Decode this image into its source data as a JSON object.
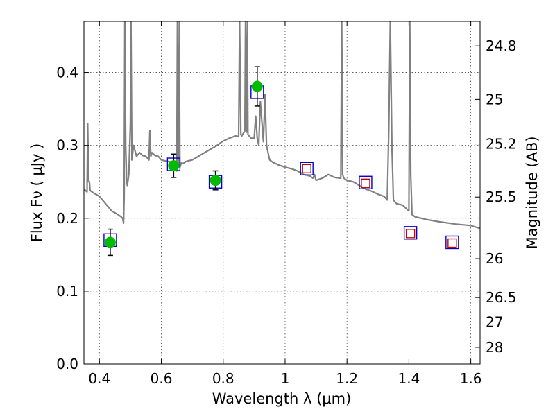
{
  "chart_data": {
    "type": "scatter",
    "title": "",
    "xlabel": "Wavelength  λ (μm)",
    "ylabel": "Flux  Fν  ( μJy )",
    "y2label": "Magnitude (AB)",
    "xlim": [
      0.35,
      1.63
    ],
    "ylim": [
      0.0,
      0.47
    ],
    "grid": true,
    "x_ticks": [
      0.4,
      0.6,
      0.8,
      1.0,
      1.2,
      1.4,
      1.6
    ],
    "x_tick_labels": [
      "0.4",
      "0.6",
      "0.8",
      "1",
      "1.2",
      "1.4",
      "1.6"
    ],
    "y_ticks": [
      0.0,
      0.1,
      0.2,
      0.3,
      0.4
    ],
    "y_tick_labels": [
      "0.0",
      "0.1",
      "0.2",
      "0.3",
      "0.4"
    ],
    "y2_ticks": [
      24.8,
      25.0,
      25.2,
      25.5,
      26.0,
      26.5,
      27.0,
      28.0
    ],
    "y2_tick_labels": [
      "24.8",
      "25",
      "25.2",
      "25.5",
      "26",
      "26.5",
      "27",
      "28"
    ],
    "series": [
      {
        "kind": "line",
        "color": "#808080",
        "x": [
          0.35,
          0.36,
          0.362,
          0.365,
          0.368,
          0.37,
          0.38,
          0.4,
          0.42,
          0.44,
          0.46,
          0.47,
          0.475,
          0.478,
          0.48,
          0.482,
          0.485,
          0.488,
          0.49,
          0.495,
          0.5,
          0.502,
          0.505,
          0.51,
          0.52,
          0.53,
          0.54,
          0.55,
          0.56,
          0.563,
          0.566,
          0.57,
          0.58,
          0.59,
          0.6,
          0.62,
          0.64,
          0.65,
          0.652,
          0.655,
          0.658,
          0.66,
          0.665,
          0.67,
          0.68,
          0.7,
          0.72,
          0.74,
          0.76,
          0.78,
          0.8,
          0.82,
          0.84,
          0.85,
          0.853,
          0.857,
          0.86,
          0.87,
          0.872,
          0.875,
          0.878,
          0.88,
          0.89,
          0.9,
          0.905,
          0.91,
          0.915,
          0.92,
          0.93,
          0.935,
          0.94,
          0.945,
          0.95,
          0.96,
          0.98,
          1.0,
          1.02,
          1.04,
          1.06,
          1.08,
          1.09,
          1.095,
          1.1,
          1.12,
          1.14,
          1.16,
          1.18,
          1.183,
          1.186,
          1.19,
          1.2,
          1.22,
          1.24,
          1.26,
          1.28,
          1.3,
          1.32,
          1.33,
          1.335,
          1.34,
          1.345,
          1.35,
          1.36,
          1.38,
          1.4,
          1.403,
          1.406,
          1.41,
          1.42,
          1.44,
          1.46,
          1.5,
          1.55,
          1.6,
          1.63
        ],
        "y": [
          0.24,
          0.236,
          0.33,
          0.25,
          0.25,
          0.238,
          0.235,
          0.23,
          0.22,
          0.21,
          0.205,
          0.202,
          0.2,
          0.193,
          0.23,
          0.47,
          0.3,
          0.25,
          0.245,
          0.26,
          0.33,
          0.47,
          0.28,
          0.3,
          0.285,
          0.29,
          0.286,
          0.285,
          0.28,
          0.32,
          0.285,
          0.29,
          0.286,
          0.285,
          0.28,
          0.278,
          0.277,
          0.265,
          0.47,
          0.27,
          0.47,
          0.27,
          0.276,
          0.275,
          0.278,
          0.28,
          0.285,
          0.29,
          0.295,
          0.3,
          0.306,
          0.31,
          0.313,
          0.312,
          0.47,
          0.315,
          0.313,
          0.32,
          0.47,
          0.318,
          0.47,
          0.315,
          0.31,
          0.31,
          0.34,
          0.31,
          0.3,
          0.36,
          0.305,
          0.37,
          0.3,
          0.29,
          0.28,
          0.277,
          0.273,
          0.27,
          0.268,
          0.265,
          0.26,
          0.258,
          0.255,
          0.26,
          0.252,
          0.255,
          0.26,
          0.256,
          0.255,
          0.47,
          0.26,
          0.255,
          0.252,
          0.25,
          0.245,
          0.24,
          0.237,
          0.233,
          0.23,
          0.225,
          0.32,
          0.47,
          0.3,
          0.225,
          0.22,
          0.218,
          0.21,
          0.47,
          0.26,
          0.205,
          0.202,
          0.2,
          0.198,
          0.195,
          0.192,
          0.19,
          0.186
        ]
      },
      {
        "kind": "points",
        "name": "",
        "marker": "circle",
        "color": "#00bb00",
        "x": [
          0.435,
          0.64,
          0.775,
          0.91
        ],
        "y": [
          0.167,
          0.272,
          0.252,
          0.381
        ],
        "yerr": [
          0.018,
          0.016,
          0.013,
          0.027
        ]
      },
      {
        "kind": "points",
        "name": "",
        "marker": "square",
        "color": "#0000cc",
        "x": [
          0.435,
          0.64,
          0.775,
          0.91,
          1.07,
          1.26,
          1.405,
          1.54
        ],
        "y": [
          0.17,
          0.274,
          0.25,
          0.373,
          0.268,
          0.249,
          0.18,
          0.167
        ]
      },
      {
        "kind": "points",
        "name": "",
        "marker": "square",
        "color": "#cc0000",
        "x": [
          1.07,
          1.26,
          1.405,
          1.54
        ],
        "y": [
          0.268,
          0.248,
          0.179,
          0.166
        ]
      }
    ]
  }
}
